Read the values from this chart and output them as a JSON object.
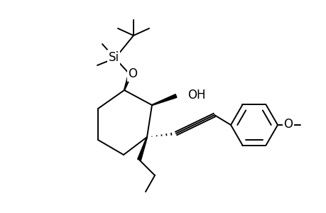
{
  "bg_color": "#ffffff",
  "line_color": "#000000",
  "lw": 1.4,
  "figsize": [
    4.6,
    3.0
  ],
  "dpi": 100,
  "labels": {
    "Si": "Si",
    "O_tbso": "O",
    "OH": "OH",
    "O_ome": "O"
  },
  "font_size": 12
}
